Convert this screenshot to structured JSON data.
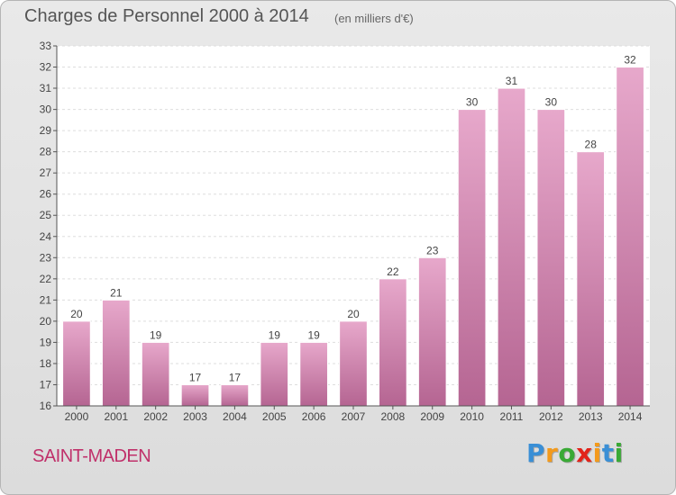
{
  "chart_data": {
    "type": "bar",
    "title": "Charges de Personnel 2000 à 2014",
    "subtitle": "(en milliers d'€)",
    "categories": [
      "2000",
      "2001",
      "2002",
      "2003",
      "2004",
      "2005",
      "2006",
      "2007",
      "2008",
      "2009",
      "2010",
      "2011",
      "2012",
      "2013",
      "2014"
    ],
    "values": [
      20,
      21,
      19,
      17,
      17,
      19,
      19,
      20,
      22,
      23,
      30,
      31,
      30,
      28,
      32
    ],
    "ylim": [
      16,
      33
    ],
    "yticks": [
      16,
      17,
      18,
      19,
      20,
      21,
      22,
      23,
      24,
      25,
      26,
      27,
      28,
      29,
      30,
      31,
      32,
      33
    ],
    "grid": true,
    "bar_color": "#cf7fab"
  },
  "commune": "SAINT-MADEN",
  "logo": {
    "letters": [
      "P",
      "r",
      "o",
      "x",
      "i",
      "t",
      "i"
    ],
    "colors": [
      "#3a8fd6",
      "#f39a1c",
      "#39a935",
      "#e2231a",
      "#f39a1c",
      "#3a8fd6",
      "#39a935"
    ]
  }
}
